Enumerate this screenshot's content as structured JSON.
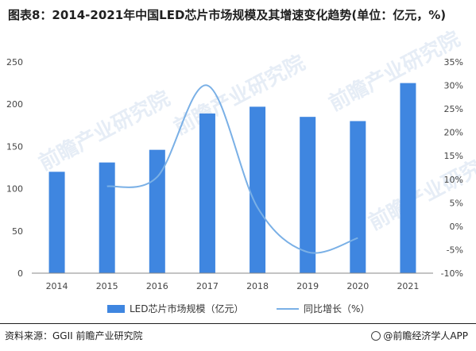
{
  "title": "图表8：2014-2021年中国LED芯片市场规模及其增速变化趋势(单位：亿元，%)",
  "legend": {
    "bar_label": "LED芯片市场规模（亿元）",
    "line_label": "同比增长（%）"
  },
  "source": "资料来源：GGII 前瞻产业研究院",
  "credit": "@前瞻经济学人APP",
  "watermark": "前瞻产业研究院",
  "colors": {
    "bar": "#3f86e0",
    "line": "#7ab0e6",
    "grid": "#e3e3e3"
  },
  "chart_data": {
    "type": "bar",
    "categories": [
      "2014",
      "2015",
      "2016",
      "2017",
      "2018",
      "2019",
      "2020",
      "2021"
    ],
    "series": [
      {
        "name": "LED芯片市场规模（亿元）",
        "type": "bar",
        "axis": "left",
        "values": [
          120,
          131,
          146,
          189,
          197,
          185,
          180,
          225
        ]
      },
      {
        "name": "同比增长（%）",
        "type": "line",
        "axis": "right",
        "smooth": true,
        "values": [
          null,
          8.5,
          10.5,
          30,
          4,
          -5.5,
          -2.5,
          null
        ]
      }
    ],
    "y_left": {
      "min": 0,
      "max": 250,
      "ticks": [
        0,
        50,
        100,
        150,
        200,
        250
      ]
    },
    "y_right": {
      "min": -10,
      "max": 35,
      "ticks": [
        "-10%",
        "-5%",
        "0%",
        "5%",
        "10%",
        "15%",
        "20%",
        "25%",
        "30%",
        "35%"
      ]
    },
    "grid": false,
    "legend_position": "bottom"
  }
}
